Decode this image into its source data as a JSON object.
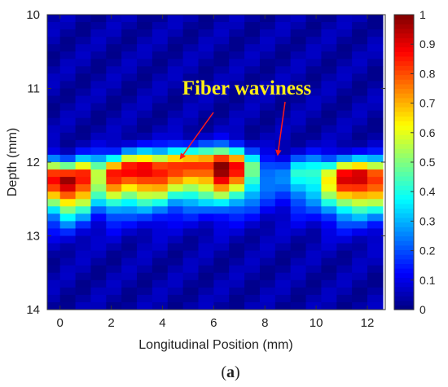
{
  "chart_data": {
    "type": "heatmap",
    "title": "",
    "xlabel": "Longitudinal Position (mm)",
    "ylabel": "Depth (mm)",
    "xlim": [
      -0.5,
      12.7
    ],
    "ylim": [
      14,
      10
    ],
    "x_ticks": [
      0,
      2,
      4,
      6,
      8,
      10,
      12
    ],
    "y_ticks": [
      10,
      11,
      12,
      13,
      14
    ],
    "colorbar": {
      "colormap": "jet",
      "range": [
        0,
        1
      ],
      "ticks": [
        0,
        0.1,
        0.2,
        0.3,
        0.4,
        0.5,
        0.6,
        0.7,
        0.8,
        0.9,
        1
      ]
    },
    "columns_x": [
      -0.3,
      0.3,
      0.9,
      1.5,
      2.1,
      2.7,
      3.3,
      3.9,
      4.5,
      5.1,
      5.7,
      6.3,
      6.9,
      7.5,
      8.1,
      8.7,
      9.3,
      9.9,
      10.5,
      11.1,
      11.7,
      12.3
    ],
    "column_peak_intensity": [
      0.82,
      0.92,
      0.85,
      0.55,
      0.8,
      0.82,
      0.88,
      0.84,
      0.78,
      0.76,
      0.8,
      0.98,
      0.82,
      0.45,
      0.22,
      0.2,
      0.35,
      0.4,
      0.6,
      0.85,
      0.9,
      0.82
    ],
    "column_peak_depth": [
      12.2,
      12.25,
      12.2,
      12.15,
      12.15,
      12.1,
      12.1,
      12.1,
      12.05,
      12.05,
      12.05,
      12.05,
      12.05,
      12.1,
      12.15,
      12.15,
      12.15,
      12.15,
      12.2,
      12.2,
      12.2,
      12.2
    ],
    "background_intensity": 0.04,
    "annotations": [
      {
        "text": "Fiber waviness",
        "arrows_to": [
          [
            4.7,
            11.95
          ],
          [
            8.5,
            11.9
          ]
        ]
      }
    ]
  },
  "caption": {
    "open": "(",
    "letter": "a",
    "close": ")"
  }
}
